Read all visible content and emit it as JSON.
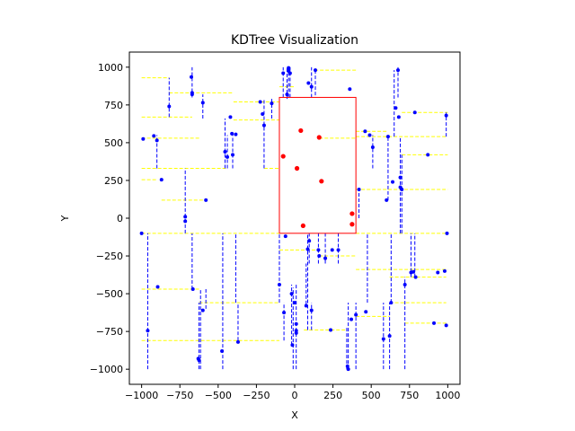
{
  "chart_data": {
    "type": "scatter",
    "title": "KDTree Visualization",
    "xlabel": "X",
    "ylabel": "Y",
    "xlim": [
      -1080,
      1080
    ],
    "ylim": [
      -1100,
      1100
    ],
    "xticks": [
      -1000,
      -750,
      -500,
      -250,
      0,
      250,
      500,
      750,
      1000
    ],
    "yticks": [
      -1000,
      -750,
      -500,
      -250,
      0,
      250,
      500,
      750,
      1000
    ],
    "grid": false,
    "colors": {
      "points": "#0000ff",
      "query_points": "#ff0000",
      "vertical_splits": "#0000ff",
      "horizontal_splits": "#ffff00",
      "query_box": "#ff0000"
    },
    "query_region": {
      "x0": -100,
      "x1": 400,
      "y0": -100,
      "y1": 800
    },
    "series": [
      {
        "points": [
          [
            -990,
            525
          ],
          [
            -1000,
            -100
          ],
          [
            -960,
            -745
          ],
          [
            -920,
            545
          ],
          [
            -900,
            515
          ],
          [
            -895,
            -455
          ],
          [
            -870,
            255
          ],
          [
            -820,
            740
          ],
          [
            -715,
            10
          ],
          [
            -715,
            -20
          ],
          [
            -675,
            935
          ],
          [
            -670,
            830
          ],
          [
            -670,
            820
          ],
          [
            -665,
            -470
          ],
          [
            -625,
            -940
          ],
          [
            -630,
            -930
          ],
          [
            -600,
            765
          ],
          [
            -600,
            -610
          ],
          [
            -580,
            120
          ],
          [
            -475,
            -880
          ],
          [
            -455,
            440
          ],
          [
            -440,
            405
          ],
          [
            -420,
            670
          ],
          [
            -410,
            560
          ],
          [
            -405,
            420
          ],
          [
            -385,
            555
          ],
          [
            -370,
            -820
          ],
          [
            -225,
            770
          ],
          [
            -210,
            690
          ],
          [
            -200,
            615
          ],
          [
            -150,
            760
          ],
          [
            -100,
            -440
          ],
          [
            -75,
            960
          ],
          [
            -70,
            -625
          ],
          [
            -60,
            -120
          ],
          [
            -50,
            820
          ],
          [
            -40,
            995
          ],
          [
            -40,
            975
          ],
          [
            -30,
            960
          ],
          [
            -20,
            -500
          ],
          [
            -15,
            -840
          ],
          [
            0,
            -560
          ],
          [
            10,
            -745
          ],
          [
            10,
            -760
          ],
          [
            10,
            -700
          ],
          [
            75,
            -580
          ],
          [
            85,
            -205
          ],
          [
            90,
            895
          ],
          [
            95,
            -150
          ],
          [
            110,
            870
          ],
          [
            110,
            -610
          ],
          [
            135,
            980
          ],
          [
            155,
            -210
          ],
          [
            160,
            -250
          ],
          [
            200,
            -265
          ],
          [
            235,
            -740
          ],
          [
            245,
            -210
          ],
          [
            285,
            -210
          ],
          [
            350,
            -1000
          ],
          [
            345,
            -980
          ],
          [
            360,
            855
          ],
          [
            370,
            -670
          ],
          [
            400,
            -640
          ],
          [
            420,
            190
          ],
          [
            460,
            575
          ],
          [
            465,
            -620
          ],
          [
            490,
            550
          ],
          [
            510,
            470
          ],
          [
            580,
            -800
          ],
          [
            600,
            120
          ],
          [
            610,
            540
          ],
          [
            620,
            -780
          ],
          [
            630,
            -560
          ],
          [
            640,
            240
          ],
          [
            660,
            730
          ],
          [
            675,
            980
          ],
          [
            680,
            670
          ],
          [
            690,
            270
          ],
          [
            690,
            205
          ],
          [
            700,
            190
          ],
          [
            720,
            -440
          ],
          [
            760,
            -360
          ],
          [
            775,
            -355
          ],
          [
            785,
            700
          ],
          [
            790,
            -390
          ],
          [
            870,
            420
          ],
          [
            910,
            -695
          ],
          [
            935,
            -360
          ],
          [
            980,
            -350
          ],
          [
            990,
            680
          ],
          [
            995,
            -100
          ],
          [
            990,
            -710
          ]
        ]
      },
      {
        "points": [
          [
            -75,
            410
          ],
          [
            15,
            330
          ],
          [
            40,
            580
          ],
          [
            55,
            -50
          ],
          [
            160,
            535
          ],
          [
            175,
            245
          ],
          [
            375,
            30
          ],
          [
            375,
            -40
          ]
        ]
      }
    ],
    "vertical_splits": [
      [
        -960,
        -1000,
        -100
      ],
      [
        -900,
        330,
        550
      ],
      [
        -820,
        670,
        930
      ],
      [
        -715,
        -100,
        330
      ],
      [
        -670,
        800,
        1000
      ],
      [
        -670,
        -470,
        -100
      ],
      [
        -625,
        -1000,
        -560
      ],
      [
        -615,
        -1000,
        -470
      ],
      [
        -600,
        660,
        820
      ],
      [
        -580,
        -600,
        -470
      ],
      [
        -470,
        -1000,
        -100
      ],
      [
        -455,
        330,
        660
      ],
      [
        -440,
        330,
        550
      ],
      [
        -405,
        330,
        550
      ],
      [
        -385,
        -560,
        -100
      ],
      [
        -370,
        -810,
        -560
      ],
      [
        -200,
        330,
        790
      ],
      [
        -150,
        660,
        790
      ],
      [
        -100,
        -560,
        -100
      ],
      [
        -75,
        800,
        1000
      ],
      [
        -70,
        -810,
        -560
      ],
      [
        -50,
        790,
        1000
      ],
      [
        -40,
        800,
        1000
      ],
      [
        -30,
        800,
        1000
      ],
      [
        -20,
        -840,
        -440
      ],
      [
        -10,
        -1000,
        -460
      ],
      [
        10,
        -1000,
        -440
      ],
      [
        75,
        -570,
        -300
      ],
      [
        85,
        -740,
        -100
      ],
      [
        95,
        -300,
        -100
      ],
      [
        110,
        800,
        1000
      ],
      [
        110,
        -740,
        -560
      ],
      [
        135,
        980,
        800
      ],
      [
        155,
        -300,
        -100
      ],
      [
        200,
        -300,
        -100
      ],
      [
        285,
        -300,
        -100
      ],
      [
        340,
        -1000,
        -720
      ],
      [
        350,
        -1000,
        -560
      ],
      [
        400,
        -1000,
        -560
      ],
      [
        420,
        0,
        190
      ],
      [
        475,
        -560,
        -100
      ],
      [
        510,
        330,
        550
      ],
      [
        580,
        -1000,
        -560
      ],
      [
        610,
        120,
        540
      ],
      [
        620,
        -1000,
        -560
      ],
      [
        630,
        -560,
        -100
      ],
      [
        650,
        540,
        980
      ],
      [
        675,
        800,
        1000
      ],
      [
        690,
        -100,
        540
      ],
      [
        700,
        -100,
        420
      ],
      [
        720,
        -1000,
        -390
      ],
      [
        760,
        -390,
        -100
      ],
      [
        785,
        -390,
        -100
      ],
      [
        990,
        540,
        700
      ]
    ],
    "horizontal_splits": [
      [
        -1000,
        -820,
        930
      ],
      [
        -820,
        -400,
        830
      ],
      [
        -1000,
        -670,
        670
      ],
      [
        -1000,
        -620,
        530
      ],
      [
        -1000,
        -450,
        330
      ],
      [
        -1000,
        -900,
        255
      ],
      [
        -870,
        -600,
        120
      ],
      [
        -1000,
        -100,
        -100
      ],
      [
        -1000,
        -625,
        -470
      ],
      [
        -625,
        -100,
        -560
      ],
      [
        -1000,
        -100,
        -810
      ],
      [
        -400,
        -100,
        770
      ],
      [
        -400,
        -100,
        650
      ],
      [
        -200,
        -100,
        330
      ],
      [
        -100,
        0,
        870
      ],
      [
        130,
        400,
        980
      ],
      [
        400,
        610,
        575
      ],
      [
        400,
        990,
        540
      ],
      [
        700,
        1000,
        700
      ],
      [
        700,
        1000,
        420
      ],
      [
        160,
        400,
        530
      ],
      [
        -100,
        160,
        -210
      ],
      [
        160,
        400,
        -250
      ],
      [
        400,
        990,
        -100
      ],
      [
        400,
        620,
        -650
      ],
      [
        400,
        1000,
        -340
      ],
      [
        620,
        990,
        -560
      ],
      [
        620,
        990,
        -390
      ],
      [
        720,
        1000,
        -695
      ],
      [
        60,
        340,
        -740
      ],
      [
        400,
        1000,
        190
      ]
    ]
  }
}
